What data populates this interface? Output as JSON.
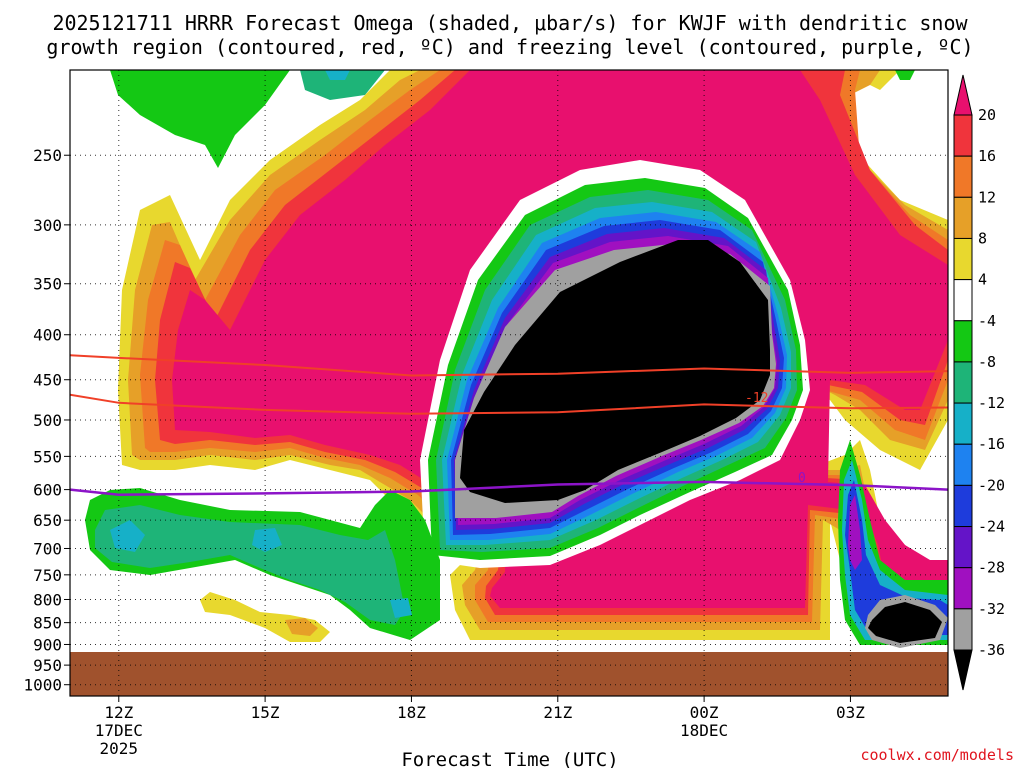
{
  "chart_data": {
    "type": "heatmap",
    "title_lines": [
      "2025121711 HRRR Forecast Omega (shaded, μbar/s) for KWJF with dendritic snow",
      "growth region (contoured, red, ºC) and freezing level (contoured, purple, ºC)"
    ],
    "xlabel": "Forecast Time (UTC)",
    "ylabel": "",
    "credit": "coolwx.com/models",
    "y_axis": {
      "scale": "pressure (inverted)",
      "ticks": [
        250,
        300,
        350,
        400,
        450,
        500,
        550,
        600,
        650,
        700,
        750,
        800,
        850,
        900,
        950,
        1000
      ],
      "range_hpa": [
        200,
        1030
      ]
    },
    "x_axis": {
      "ticks": [
        {
          "hour": 0,
          "label": "12Z",
          "sub": [
            "17DEC",
            "2025"
          ]
        },
        {
          "hour": 3,
          "label": "15Z",
          "sub": []
        },
        {
          "hour": 6,
          "label": "18Z",
          "sub": []
        },
        {
          "hour": 9,
          "label": "21Z",
          "sub": []
        },
        {
          "hour": 12,
          "label": "00Z",
          "sub": [
            "18DEC"
          ]
        },
        {
          "hour": 15,
          "label": "03Z",
          "sub": []
        }
      ],
      "range_hours": [
        -1,
        17
      ]
    },
    "grid": true,
    "colorbar": {
      "levels": [
        20,
        16,
        12,
        8,
        4,
        -4,
        -8,
        -12,
        -16,
        -20,
        -24,
        -28,
        -32,
        -36
      ],
      "colors": [
        "#e8106e",
        "#f0343c",
        "#f07828",
        "#e6a028",
        "#e8d82e",
        "#ffffff",
        "#14c814",
        "#1eb478",
        "#16b0c8",
        "#1e82f0",
        "#1e3cdc",
        "#6414c8",
        "#a010c0",
        "#a0a0a0",
        "#000000"
      ]
    },
    "contours": [
      {
        "name": "dendritic snow growth region",
        "color": "#f04028",
        "labels": [
          "-12"
        ],
        "lines": [
          {
            "hours": [
              -1,
              0,
              3,
              6,
              9,
              12,
              15,
              17
            ],
            "hpa": [
              422,
              425,
              433,
              445,
              443,
              437,
              442,
              440
            ]
          },
          {
            "hours": [
              -1,
              0,
              3,
              6,
              9,
              12,
              15,
              17
            ],
            "hpa": [
              468,
              478,
              487,
              492,
              490,
              480,
              485,
              484
            ]
          }
        ]
      },
      {
        "name": "freezing level",
        "color": "#8c14c8",
        "labels": [
          "0"
        ],
        "lines": [
          {
            "hours": [
              -1,
              0,
              3,
              6,
              9,
              12,
              15,
              17
            ],
            "hpa": [
              600,
              608,
              606,
              603,
              592,
              588,
              593,
              600
            ]
          }
        ]
      }
    ],
    "ground_below_hpa": 930
  }
}
